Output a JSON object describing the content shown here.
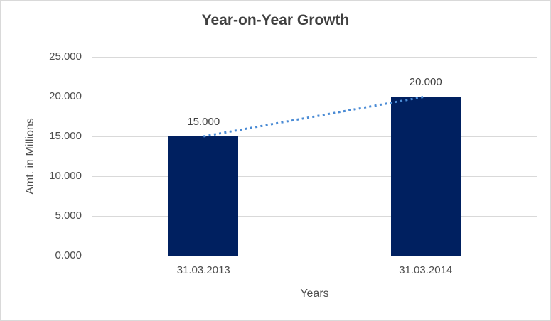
{
  "chart_data": {
    "type": "bar",
    "title": "Year-on-Year Growth",
    "xlabel": "Years",
    "ylabel": "Amt. in Millions",
    "categories": [
      "31.03.2013",
      "31.03.2014"
    ],
    "values": [
      15,
      20
    ],
    "data_labels": [
      "15.000",
      "20.000"
    ],
    "y_tick_values": [
      0,
      5,
      10,
      15,
      20,
      25
    ],
    "y_tick_labels": [
      "0.000",
      "5.000",
      "10.000",
      "15.000",
      "20.000",
      "25.000"
    ],
    "ylim": [
      0,
      25
    ],
    "grid": true,
    "legend_position": "none",
    "bar_color": "#002060",
    "trendline": {
      "type": "linear",
      "style": "dotted",
      "color": "#4A8BD5"
    },
    "colors": {
      "gridline": "#D9D9D9",
      "axis_line": "#C6C6C6",
      "title_text": "#404040",
      "label_text": "#4D4D4D",
      "border": "#D9D9D9",
      "background": "#FFFFFF"
    }
  }
}
